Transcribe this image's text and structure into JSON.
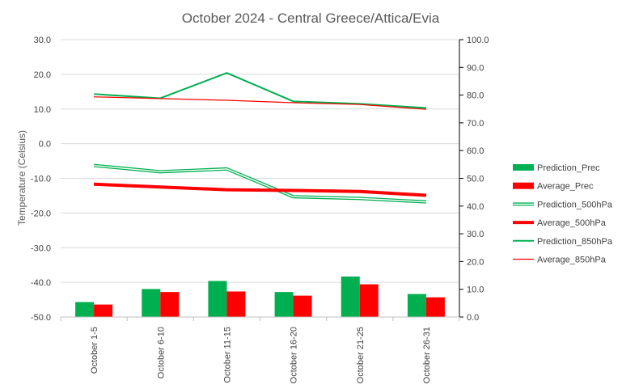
{
  "chart_data": {
    "type": "bar",
    "title": "October 2024 - Central Greece/Attica/Evia",
    "xlabel": "",
    "ylabel": "Temperature (Celsius)",
    "y2label": "",
    "categories": [
      "October 1-5",
      "October 6-10",
      "October 11-15",
      "October 16-20",
      "October 21-25",
      "October 26-31"
    ],
    "ylim": [
      -50,
      30
    ],
    "y2lim": [
      0,
      100
    ],
    "yticks": [
      "30.0",
      "20.0",
      "10.0",
      "0.0",
      "-10.0",
      "-20.0",
      "-30.0",
      "-40.0",
      "-50.0"
    ],
    "y2ticks": [
      "100.0",
      "90.0",
      "80.0",
      "70.0",
      "60.0",
      "50.0",
      "40.0",
      "30.0",
      "20.0",
      "10.0",
      "0.0"
    ],
    "grid": true,
    "legend_position": "right",
    "series": [
      {
        "name": "Prediction_Prec",
        "kind": "bar",
        "axis": "right",
        "color": "#00B050",
        "values": [
          5.4,
          10.1,
          13.0,
          9.0,
          14.6,
          8.3
        ]
      },
      {
        "name": "Average_Prec",
        "kind": "bar",
        "axis": "right",
        "color": "#FF0000",
        "values": [
          4.5,
          9.0,
          9.2,
          7.7,
          11.8,
          7.1
        ]
      },
      {
        "name": "Prediction_500hPa",
        "kind": "line",
        "style": "double",
        "axis": "left",
        "color": "#00B050",
        "values": [
          -6.3,
          -8.1,
          -7.3,
          -15.3,
          -15.8,
          -16.8
        ]
      },
      {
        "name": "Average_500hPa",
        "kind": "line",
        "style": "thick",
        "axis": "left",
        "color": "#FF0000",
        "values": [
          -11.7,
          -12.5,
          -13.3,
          -13.5,
          -13.8,
          -14.9
        ]
      },
      {
        "name": "Prediction_850hPa",
        "kind": "line",
        "style": "normal",
        "axis": "left",
        "color": "#00B050",
        "values": [
          14.3,
          13.1,
          20.4,
          12.2,
          11.5,
          10.3
        ]
      },
      {
        "name": "Average_850hPa",
        "kind": "line",
        "style": "thin",
        "axis": "left",
        "color": "#FF0000",
        "values": [
          13.5,
          13.0,
          12.5,
          11.8,
          11.3,
          9.9
        ]
      }
    ]
  }
}
